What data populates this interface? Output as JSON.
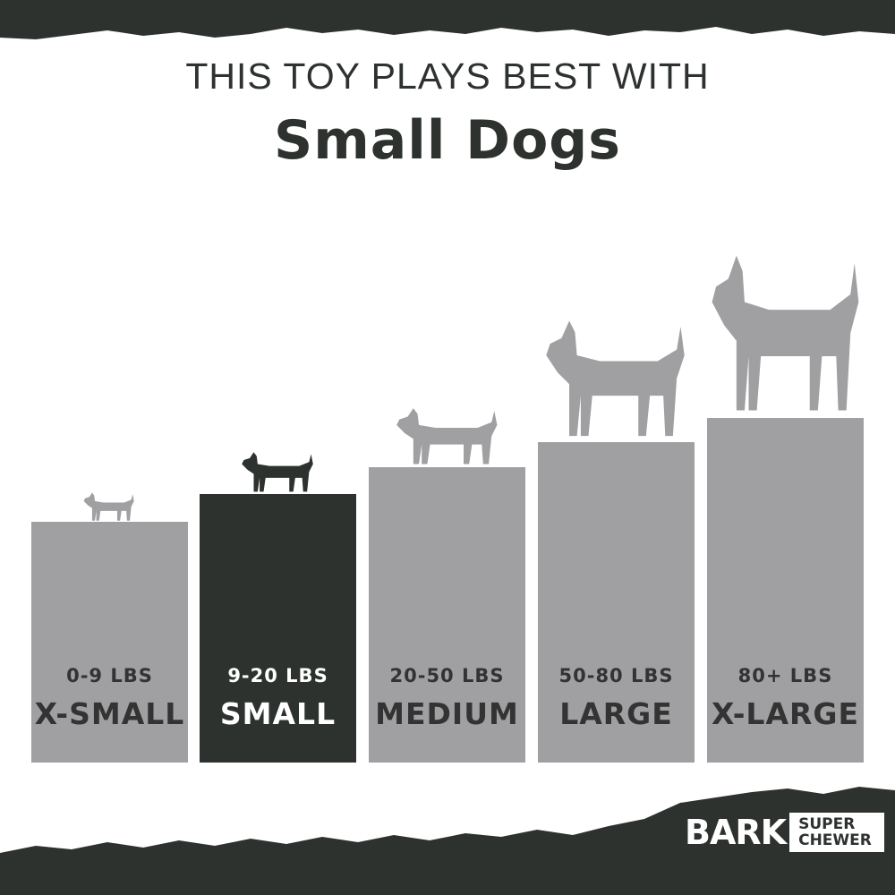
{
  "header": {
    "line1": "THIS TOY PLAYS BEST WITH",
    "line2": "Small Dogs"
  },
  "sizes": [
    {
      "weight": "0-9 LBS",
      "label": "X-SMALL",
      "highlighted": false
    },
    {
      "weight": "9-20 LBS",
      "label": "SMALL",
      "highlighted": true
    },
    {
      "weight": "20-50 LBS",
      "label": "MEDIUM",
      "highlighted": false
    },
    {
      "weight": "50-80 LBS",
      "label": "LARGE",
      "highlighted": false
    },
    {
      "weight": "80+ LBS",
      "label": "X-LARGE",
      "highlighted": false
    }
  ],
  "logo": {
    "brand": "BARK",
    "line1": "SUPER",
    "line2": "CHEWER"
  },
  "colors": {
    "dark": "#2e322f",
    "grey": "#a0a0a2",
    "background": "#ffffff"
  }
}
